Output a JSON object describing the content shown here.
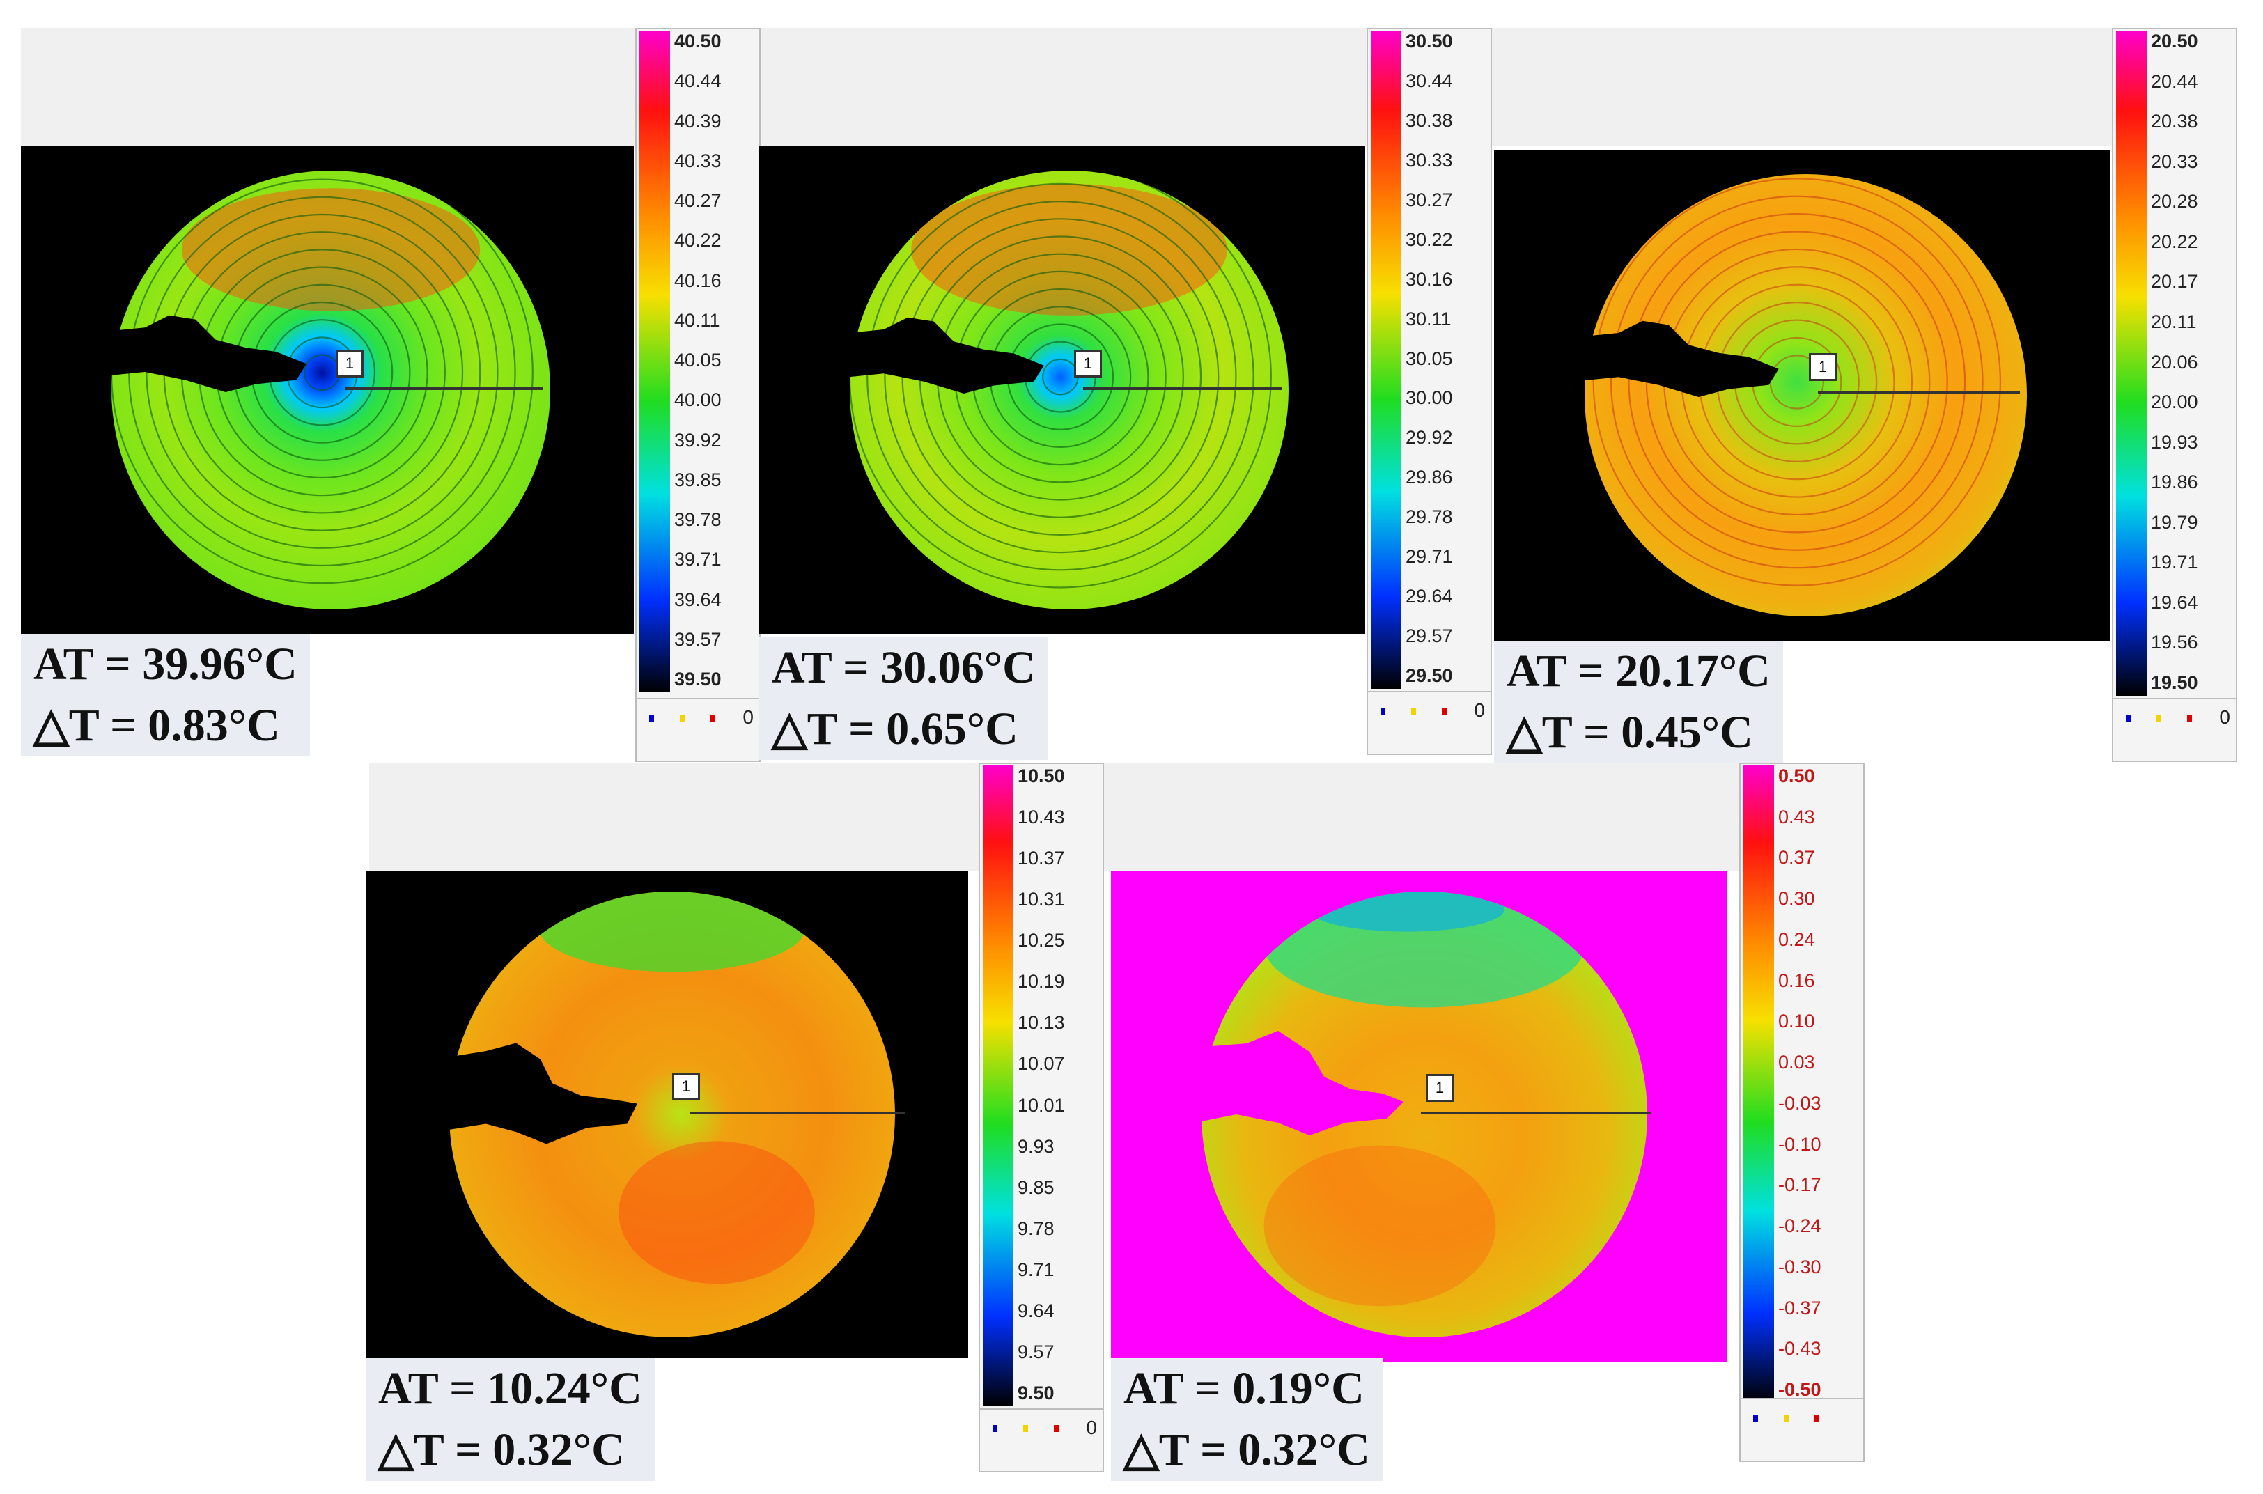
{
  "panels": [
    {
      "id": "p1",
      "at": "AT =  39.96°C",
      "dt": "△T  =  0.83°C",
      "ticks": [
        "40.50",
        "40.44",
        "40.39",
        "40.33",
        "40.27",
        "40.22",
        "40.16",
        "40.11",
        "40.05",
        "40.00",
        "39.92",
        "39.85",
        "39.78",
        "39.71",
        "39.64",
        "39.57",
        "39.50"
      ],
      "zero": "0",
      "marker": "1",
      "legend_colors": [
        "#0000cc",
        "#f2d200",
        "#dd0000"
      ]
    },
    {
      "id": "p2",
      "at": "AT =  30.06°C",
      "dt": "△T  =  0.65°C",
      "ticks": [
        "30.50",
        "30.44",
        "30.38",
        "30.33",
        "30.27",
        "30.22",
        "30.16",
        "30.11",
        "30.05",
        "30.00",
        "29.92",
        "29.86",
        "29.78",
        "29.71",
        "29.64",
        "29.57",
        "29.50"
      ],
      "zero": "0",
      "marker": "1",
      "legend_colors": [
        "#0000cc",
        "#f2d200",
        "#dd0000"
      ]
    },
    {
      "id": "p3",
      "at": "AT =  20.17°C",
      "dt": "△T  =  0.45°C",
      "ticks": [
        "20.50",
        "20.44",
        "20.38",
        "20.33",
        "20.28",
        "20.22",
        "20.17",
        "20.11",
        "20.06",
        "20.00",
        "19.93",
        "19.86",
        "19.79",
        "19.71",
        "19.64",
        "19.56",
        "19.50"
      ],
      "zero": "0",
      "marker": "1",
      "legend_colors": [
        "#0000cc",
        "#f2d200",
        "#dd0000"
      ]
    },
    {
      "id": "p4",
      "at": "AT =  10.24°C",
      "dt": "△T  =  0.32°C",
      "ticks": [
        "10.50",
        "10.43",
        "10.37",
        "10.31",
        "10.25",
        "10.19",
        "10.13",
        "10.07",
        "10.01",
        "9.93",
        "9.85",
        "9.78",
        "9.71",
        "9.64",
        "9.57",
        "9.50"
      ],
      "zero": "0",
      "marker": "1",
      "legend_colors": [
        "#0000cc",
        "#f2d200",
        "#dd0000"
      ]
    },
    {
      "id": "p5",
      "at": "AT =  0.19°C",
      "dt": "△T  =  0.32°C",
      "ticks": [
        "0.50",
        "0.43",
        "0.37",
        "0.30",
        "0.24",
        "0.16",
        "0.10",
        "0.03",
        "-0.03",
        "-0.10",
        "-0.17",
        "-0.24",
        "-0.30",
        "-0.37",
        "-0.43",
        "-0.50"
      ],
      "zero": "",
      "marker": "1",
      "legend_colors": [
        "#0000cc",
        "#f2d200",
        "#dd0000"
      ]
    }
  ],
  "colors": {
    "thermal_background": "#000000",
    "thermal_background_alt": "#ff00ff",
    "label_background": "#e9ecf3",
    "scale_gradient": [
      "#ff00cc",
      "#ff1010",
      "#ff8c00",
      "#f7e000",
      "#20dd20",
      "#00e0e0",
      "#0030ff",
      "#000000"
    ]
  }
}
